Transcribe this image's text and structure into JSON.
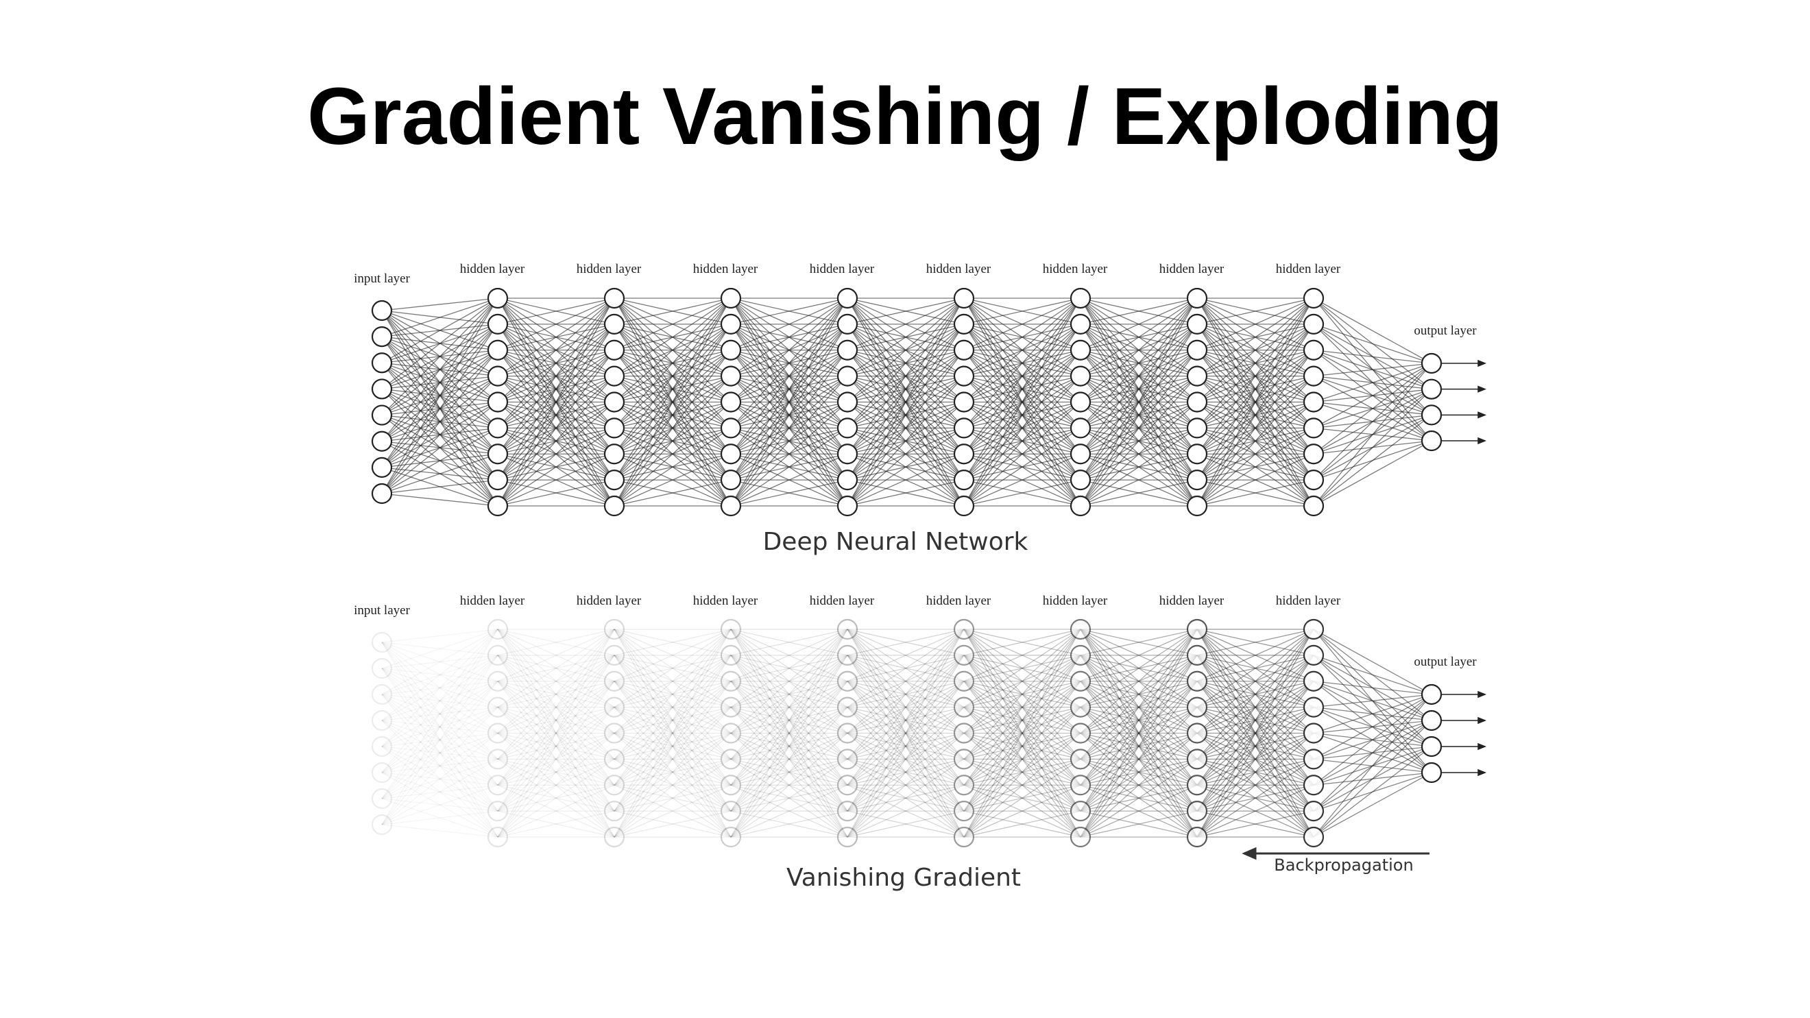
{
  "slide": {
    "title": "Gradient Vanishing / Exploding"
  },
  "networks": [
    {
      "id": "deep",
      "caption": "Deep Neural Network",
      "input_label": "input layer",
      "hidden_label": "hidden layer",
      "output_label": "output layer",
      "hidden_layer_count": 8,
      "input_nodes": 8,
      "hidden_nodes": 9,
      "output_nodes": 4,
      "layer_opacity": [
        1,
        1,
        1,
        1,
        1,
        1,
        1,
        1,
        1,
        1
      ]
    },
    {
      "id": "vanishing",
      "caption": "Vanishing Gradient",
      "input_label": "input layer",
      "hidden_label": "hidden layer",
      "output_label": "output layer",
      "hidden_layer_count": 8,
      "input_nodes": 8,
      "hidden_nodes": 9,
      "output_nodes": 4,
      "layer_opacity": [
        0.08,
        0.12,
        0.16,
        0.22,
        0.3,
        0.45,
        0.6,
        0.75,
        0.9,
        1
      ],
      "arrow_label": "Backpropagation"
    }
  ],
  "colors": {
    "line": "#222222",
    "node_stroke": "#222222",
    "node_fill": "#ffffff",
    "text": "#222222"
  }
}
